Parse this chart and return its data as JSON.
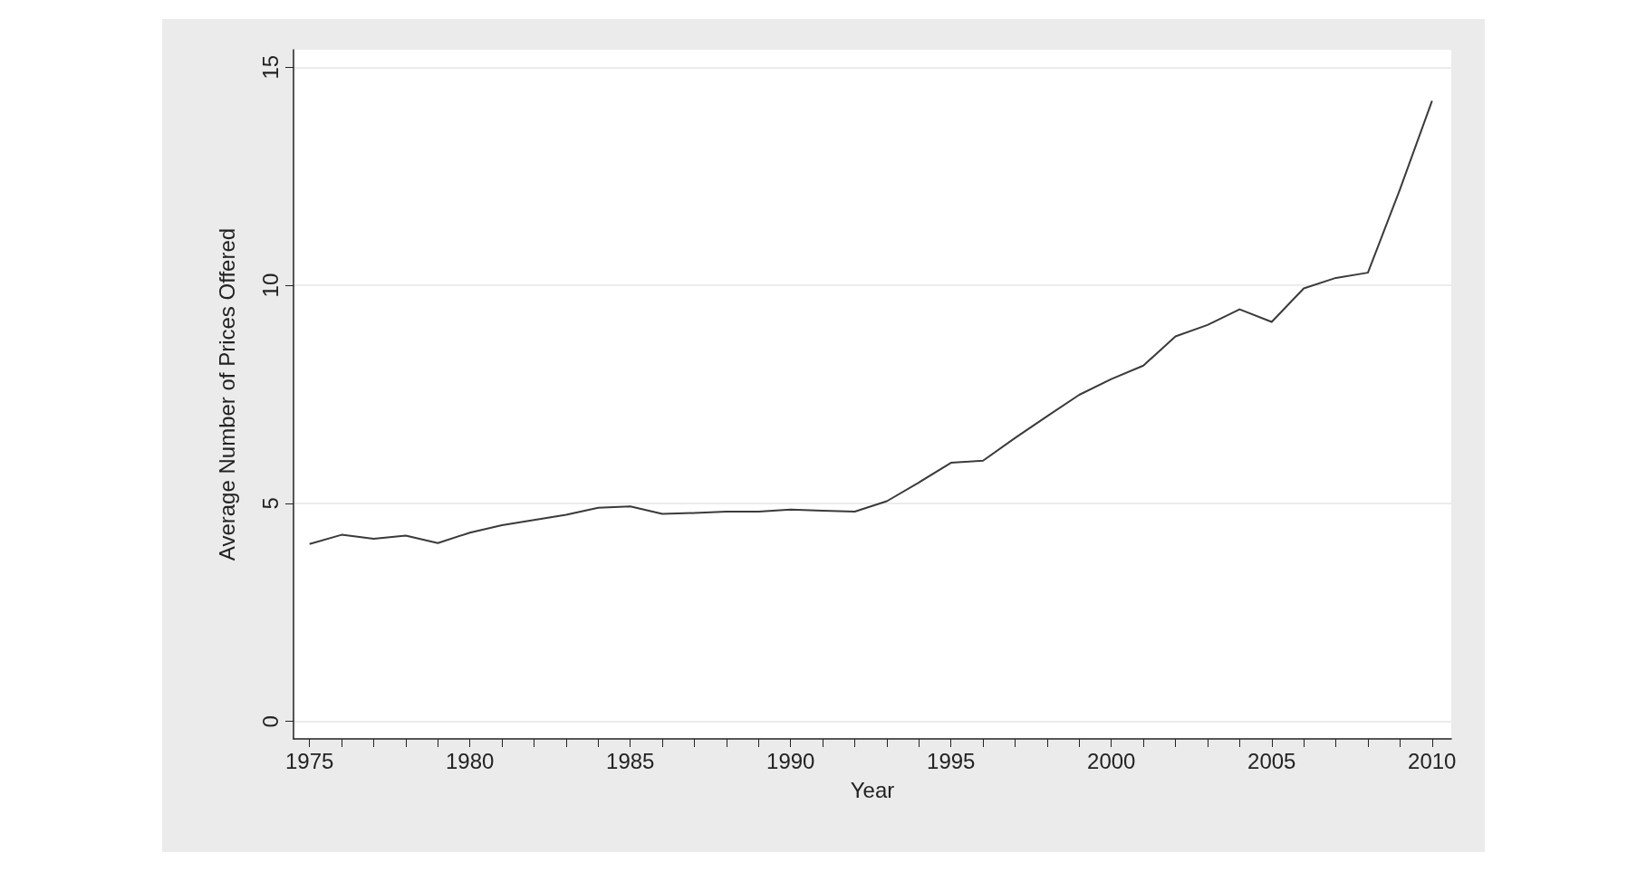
{
  "chart_data": {
    "type": "line",
    "xlabel": "Year",
    "ylabel": "Average Number of Prices Offered",
    "x": [
      1975,
      1976,
      1977,
      1978,
      1979,
      1980,
      1981,
      1982,
      1983,
      1984,
      1985,
      1986,
      1987,
      1988,
      1989,
      1990,
      1991,
      1992,
      1993,
      1994,
      1995,
      1996,
      1997,
      1998,
      1999,
      2000,
      2001,
      2002,
      2003,
      2004,
      2005,
      2006,
      2007,
      2008,
      2009,
      2010
    ],
    "series": [
      {
        "color": "#3a3a3a",
        "values": [
          4.07,
          4.28,
          4.19,
          4.26,
          4.09,
          4.33,
          4.5,
          4.62,
          4.74,
          4.9,
          4.93,
          4.76,
          4.78,
          4.81,
          4.81,
          4.86,
          4.83,
          4.81,
          5.05,
          5.48,
          5.93,
          5.98,
          6.5,
          7.0,
          7.49,
          7.85,
          8.16,
          8.83,
          9.09,
          9.45,
          9.16,
          9.93,
          10.17,
          10.29,
          12.2,
          14.23
        ]
      }
    ],
    "xlim": [
      1974.5,
      2010.6
    ],
    "xticks": [
      1975,
      {
        "value": 1976,
        "label": null
      },
      {
        "value": 1977,
        "label": null
      },
      {
        "value": 1978,
        "label": null
      },
      {
        "value": 1979,
        "label": null
      },
      1980,
      {
        "value": 1981,
        "label": null
      },
      {
        "value": 1982,
        "label": null
      },
      {
        "value": 1983,
        "label": null
      },
      {
        "value": 1984,
        "label": null
      },
      1985,
      {
        "value": 1986,
        "label": null
      },
      {
        "value": 1987,
        "label": null
      },
      {
        "value": 1988,
        "label": null
      },
      {
        "value": 1989,
        "label": null
      },
      1990,
      {
        "value": 1991,
        "label": null
      },
      {
        "value": 1992,
        "label": null
      },
      {
        "value": 1993,
        "label": null
      },
      {
        "value": 1994,
        "label": null
      },
      1995,
      {
        "value": 1996,
        "label": null
      },
      {
        "value": 1997,
        "label": null
      },
      {
        "value": 1998,
        "label": null
      },
      {
        "value": 1999,
        "label": null
      },
      2000,
      {
        "value": 2001,
        "label": null
      },
      {
        "value": 2002,
        "label": null
      },
      {
        "value": 2003,
        "label": null
      },
      {
        "value": 2004,
        "label": null
      },
      2005,
      {
        "value": 2006,
        "label": null
      },
      {
        "value": 2007,
        "label": null
      },
      {
        "value": 2008,
        "label": null
      },
      {
        "value": 2009,
        "label": null
      },
      2010
    ],
    "ylim": [
      -0.4,
      15.4
    ],
    "yticks": [
      0,
      5,
      10,
      15
    ],
    "grid": "y",
    "marker": "none",
    "line_style": "solid"
  }
}
